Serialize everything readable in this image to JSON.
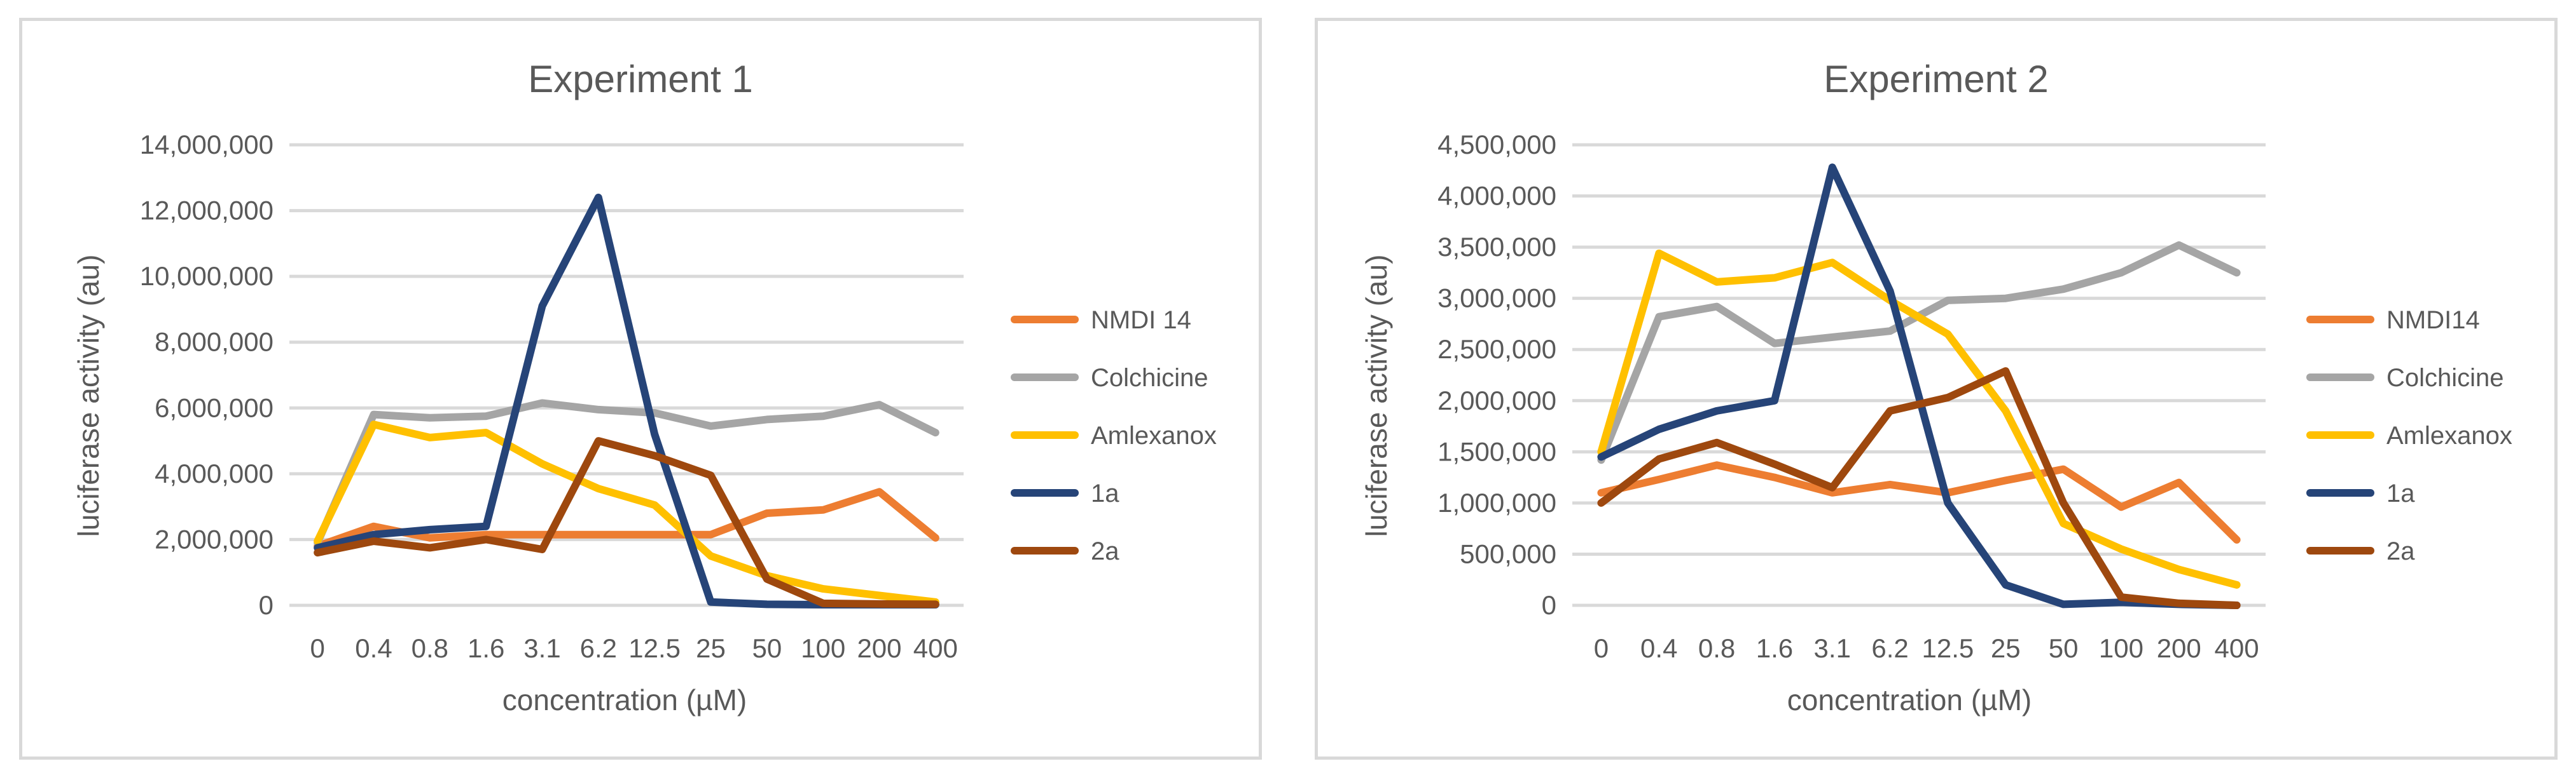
{
  "chart_data": [
    {
      "type": "line",
      "title": "Experiment 1",
      "xlabel": "concentration (µM)",
      "ylabel": "luciferase activity (au)",
      "ylim": [
        0,
        14000000
      ],
      "yticks": [
        "0",
        "2,000,000",
        "4,000,000",
        "6,000,000",
        "8,000,000",
        "10,000,000",
        "12,000,000",
        "14,000,000"
      ],
      "categories": [
        "0",
        "0.4",
        "0.8",
        "1.6",
        "3.1",
        "6.2",
        "12.5",
        "25",
        "50",
        "100",
        "200",
        "400"
      ],
      "legend_position": "right",
      "series": [
        {
          "name": "NMDI 14",
          "color": "#ED7D31",
          "values": [
            1800000,
            2400000,
            2050000,
            2150000,
            2150000,
            2150000,
            2150000,
            2150000,
            2800000,
            2900000,
            3450000,
            2050000
          ]
        },
        {
          "name": "Colchicine",
          "color": "#A5A5A5",
          "values": [
            1900000,
            5800000,
            5700000,
            5750000,
            6150000,
            5950000,
            5850000,
            5450000,
            5650000,
            5750000,
            6100000,
            5250000
          ]
        },
        {
          "name": "Amlexanox",
          "color": "#FFC000",
          "values": [
            1950000,
            5500000,
            5100000,
            5250000,
            4300000,
            3550000,
            3050000,
            1500000,
            900000,
            500000,
            300000,
            100000
          ]
        },
        {
          "name": "1a",
          "color": "#264478",
          "values": [
            1750000,
            2150000,
            2300000,
            2400000,
            9100000,
            12400000,
            5200000,
            100000,
            30000,
            20000,
            20000,
            20000
          ]
        },
        {
          "name": "2a",
          "color": "#9E480E",
          "values": [
            1600000,
            1950000,
            1750000,
            2000000,
            1700000,
            5000000,
            4550000,
            3950000,
            800000,
            60000,
            40000,
            30000
          ]
        }
      ]
    },
    {
      "type": "line",
      "title": "Experiment 2",
      "xlabel": "concentration (µM)",
      "ylabel": "luciferase activity (au)",
      "ylim": [
        0,
        4500000
      ],
      "yticks": [
        "0",
        "500,000",
        "1,000,000",
        "1,500,000",
        "2,000,000",
        "2,500,000",
        "3,000,000",
        "3,500,000",
        "4,000,000",
        "4,500,000"
      ],
      "categories": [
        "0",
        "0.4",
        "0.8",
        "1.6",
        "3.1",
        "6.2",
        "12.5",
        "25",
        "50",
        "100",
        "200",
        "400"
      ],
      "legend_position": "right",
      "series": [
        {
          "name": "NMDI14",
          "color": "#ED7D31",
          "values": [
            1100000,
            1230000,
            1370000,
            1250000,
            1100000,
            1180000,
            1100000,
            1220000,
            1330000,
            960000,
            1200000,
            640000
          ]
        },
        {
          "name": "Colchicine",
          "color": "#A5A5A5",
          "values": [
            1420000,
            2820000,
            2920000,
            2560000,
            2620000,
            2680000,
            2980000,
            3000000,
            3090000,
            3250000,
            3520000,
            3250000
          ]
        },
        {
          "name": "Amlexanox",
          "color": "#FFC000",
          "values": [
            1500000,
            3440000,
            3160000,
            3200000,
            3350000,
            2980000,
            2650000,
            1900000,
            800000,
            550000,
            350000,
            200000
          ]
        },
        {
          "name": "1a",
          "color": "#264478",
          "values": [
            1450000,
            1720000,
            1900000,
            2000000,
            4280000,
            3070000,
            1000000,
            200000,
            10000,
            30000,
            10000,
            0
          ]
        },
        {
          "name": "2a",
          "color": "#9E480E",
          "values": [
            1000000,
            1430000,
            1590000,
            1380000,
            1150000,
            1900000,
            2030000,
            2290000,
            1000000,
            80000,
            20000,
            0
          ]
        }
      ]
    }
  ]
}
